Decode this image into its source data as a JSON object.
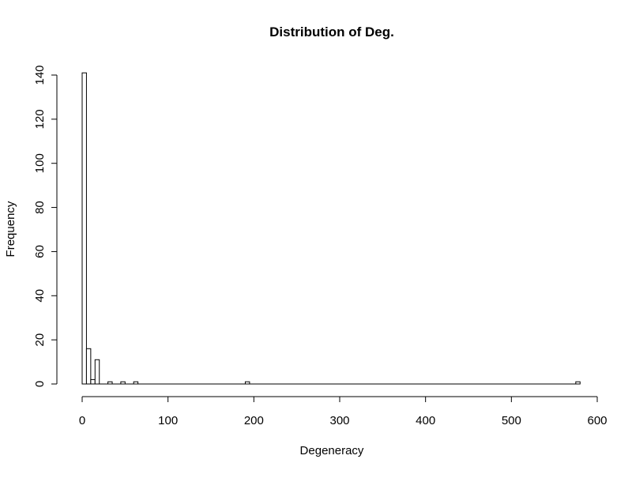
{
  "chart_data": {
    "type": "bar",
    "title": "Distribution of Deg.",
    "xlabel": "Degeneracy",
    "ylabel": "Frequency",
    "bin_width": 5,
    "xlim": [
      0,
      600
    ],
    "ylim": [
      0,
      140
    ],
    "x_ticks": [
      0,
      100,
      200,
      300,
      400,
      500,
      600
    ],
    "y_ticks": [
      0,
      20,
      40,
      60,
      80,
      100,
      120,
      140
    ],
    "grid": false,
    "bins": [
      {
        "start": 0,
        "end": 5,
        "count": 141
      },
      {
        "start": 5,
        "end": 10,
        "count": 16
      },
      {
        "start": 10,
        "end": 15,
        "count": 2
      },
      {
        "start": 15,
        "end": 20,
        "count": 11
      },
      {
        "start": 30,
        "end": 35,
        "count": 1
      },
      {
        "start": 45,
        "end": 50,
        "count": 1
      },
      {
        "start": 60,
        "end": 65,
        "count": 1
      },
      {
        "start": 190,
        "end": 195,
        "count": 1
      },
      {
        "start": 575,
        "end": 580,
        "count": 1
      }
    ]
  }
}
